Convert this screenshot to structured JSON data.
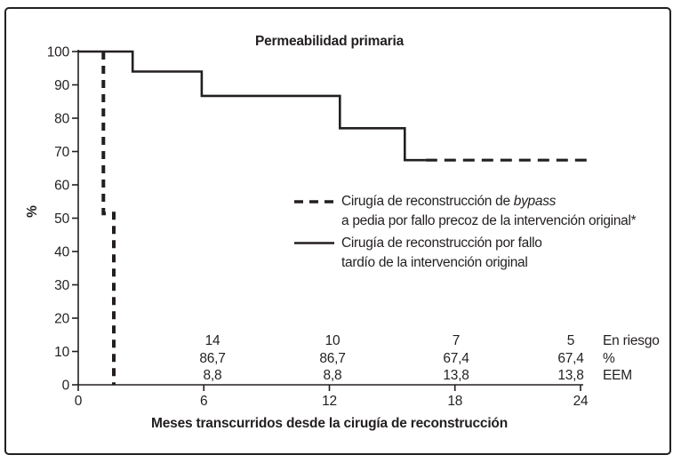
{
  "figure": {
    "title": "Permeabilidad primaria",
    "xlabel": "Meses transcurridos desde la cirugía de reconstrucción",
    "ylabel": "%"
  },
  "colors": {
    "ink": "#231f20",
    "background": "#ffffff"
  },
  "legend": {
    "entries": [
      {
        "style": "dashed",
        "line1_pre": "Cirugía de reconstrucción de ",
        "line1_italic": "bypass",
        "line2": "a pedia por fallo precoz de la intervención original*"
      },
      {
        "style": "solid",
        "line1": "Cirugía de reconstrucción por fallo",
        "line2": "tardío de la intervención original"
      }
    ]
  },
  "chart_data": {
    "type": "line",
    "subtype": "kaplan-meier-step",
    "title": "Permeabilidad primaria",
    "xlabel": "Meses transcurridos desde la cirugía de reconstrucción",
    "ylabel": "%",
    "xlim": [
      0,
      24
    ],
    "ylim": [
      0,
      100
    ],
    "x_ticks": [
      0,
      6,
      12,
      18,
      24
    ],
    "y_ticks": [
      0,
      10,
      20,
      30,
      40,
      50,
      60,
      70,
      80,
      90,
      100
    ],
    "grid": false,
    "legend_position": "inside-center",
    "series": [
      {
        "name": "Cirugía de reconstrucción de bypass a pedia por fallo precoz de la intervención original*",
        "style": "dashed",
        "points": [
          [
            1.2,
            100
          ],
          [
            1.2,
            51.4
          ],
          [
            1.7,
            51.4
          ],
          [
            1.7,
            0
          ]
        ]
      },
      {
        "name": "Cirugía de reconstrucción por fallo tardío de la intervención original",
        "style": "solid",
        "points": [
          [
            0,
            100
          ],
          [
            2.6,
            100
          ],
          [
            2.6,
            94
          ],
          [
            5.9,
            94
          ],
          [
            5.9,
            86.7
          ],
          [
            12.5,
            86.7
          ],
          [
            12.5,
            77
          ],
          [
            15.6,
            77
          ],
          [
            15.6,
            67.4
          ],
          [
            16.6,
            67.4
          ]
        ],
        "censored_tail": {
          "style": "dashed",
          "points": [
            [
              16.6,
              67.4
            ],
            [
              24.3,
              67.4
            ]
          ]
        }
      }
    ],
    "risk_table": {
      "months": [
        6,
        12,
        18,
        24
      ],
      "rows": [
        {
          "label": "En riesgo",
          "values": [
            "14",
            "10",
            "7",
            "5"
          ]
        },
        {
          "label": "%",
          "values": [
            "86,7",
            "86,7",
            "67,4",
            "67,4"
          ]
        },
        {
          "label": "EEM",
          "values": [
            "8,8",
            "8,8",
            "13,8",
            "13,8"
          ]
        }
      ]
    }
  }
}
